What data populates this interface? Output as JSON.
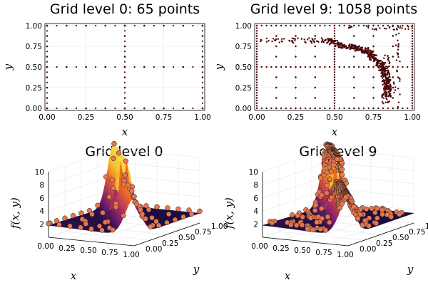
{
  "colors": {
    "marker_fill": "#4a0808",
    "surface_low": "#1b0c41",
    "surface_mid": "#bc3754",
    "surface_high": "#f5d745",
    "ball": "#e8764c"
  },
  "chart_data": [
    {
      "type": "scatter",
      "title": "Grid level 0: 65 points",
      "xlabel": "x",
      "ylabel": "y",
      "xlim": [
        0,
        1
      ],
      "ylim": [
        0,
        1
      ],
      "xticks": [
        "0.00",
        "0.25",
        "0.50",
        "0.75",
        "1.00"
      ],
      "yticks": [
        "0.00",
        "0.25",
        "0.50",
        "0.75",
        "1.00"
      ],
      "grid": true,
      "x_lines": [
        0.0,
        0.5,
        1.0
      ],
      "y_lines": [
        0.0,
        0.5,
        1.0
      ],
      "x_dyadic": [
        0.0,
        0.125,
        0.25,
        0.375,
        0.5,
        0.625,
        0.75,
        0.875,
        1.0
      ],
      "y_dyadic": [
        0.0,
        0.125,
        0.25,
        0.375,
        0.5,
        0.625,
        0.75,
        0.875,
        1.0
      ]
    },
    {
      "type": "scatter",
      "title": "Grid level 9: 1058 points",
      "xlabel": "x",
      "ylabel": "y",
      "xlim": [
        0,
        1
      ],
      "ylim": [
        0,
        1
      ],
      "xticks": [
        "0.00",
        "0.25",
        "0.50",
        "0.75",
        "1.00"
      ],
      "yticks": [
        "0.00",
        "0.25",
        "0.50",
        "0.75",
        "1.00"
      ],
      "grid": true,
      "base_lines": [
        0.0,
        0.125,
        0.25,
        0.375,
        0.5,
        0.625,
        0.75,
        0.875,
        1.0
      ],
      "ridge": [
        [
          0.45,
          0.82
        ],
        [
          0.55,
          0.76
        ],
        [
          0.62,
          0.74
        ],
        [
          0.7,
          0.7
        ],
        [
          0.75,
          0.62
        ],
        [
          0.8,
          0.52
        ],
        [
          0.83,
          0.4
        ],
        [
          0.84,
          0.28
        ],
        [
          0.84,
          0.15
        ]
      ],
      "dense_row_y": 0.82,
      "dense_col_x": 0.83
    },
    {
      "type": "surface",
      "title": "Grid level 0",
      "xlabel": "x",
      "ylabel": "y",
      "zlabel": "f(x, y)",
      "zticks": [
        "2",
        "4",
        "6",
        "8",
        "10"
      ],
      "xticks": [
        "0.00",
        "0.25",
        "0.50",
        "0.75",
        "1.00"
      ],
      "yticks": [
        "0.00",
        "0.25",
        "0.50",
        "0.75",
        "1.00"
      ],
      "zlim": [
        0,
        10
      ]
    },
    {
      "type": "surface",
      "title": "Grid level 9",
      "xlabel": "x",
      "ylabel": "y",
      "zlabel": "f(x, y)",
      "zticks": [
        "2",
        "4",
        "6",
        "8",
        "10"
      ],
      "xticks": [
        "0.00",
        "0.25",
        "0.50",
        "0.75",
        "1.00"
      ],
      "yticks": [
        "0.00",
        "0.25",
        "0.50",
        "0.75",
        "1.00"
      ],
      "zlim": [
        0,
        10
      ]
    }
  ]
}
